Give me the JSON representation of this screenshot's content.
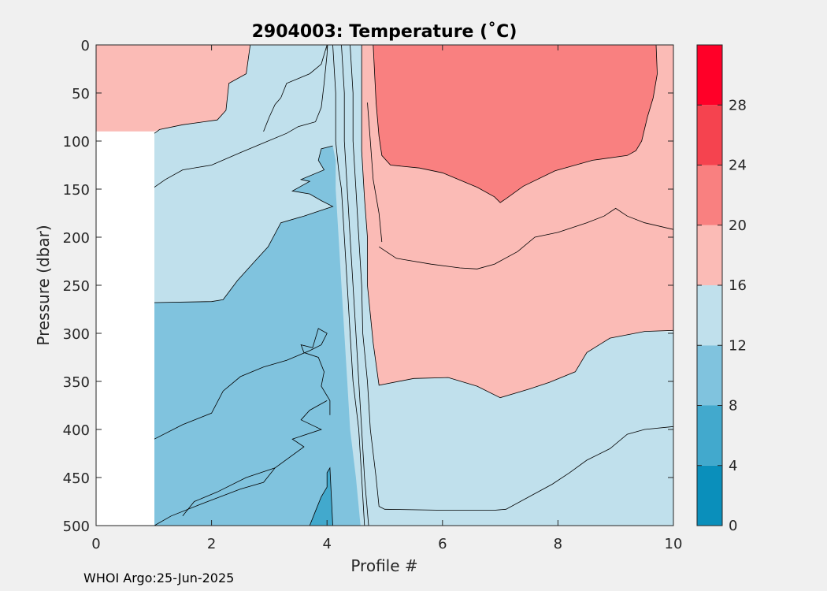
{
  "chart_data": {
    "type": "filled-contour",
    "title": "2904003:  Temperature (˚C)",
    "xlabel": "Profile #",
    "ylabel": "Pressure (dbar)",
    "xlim": [
      0,
      10
    ],
    "ylim": [
      0,
      500
    ],
    "y_reversed": true,
    "xticks": [
      0,
      2,
      4,
      6,
      8,
      10
    ],
    "yticks": [
      0,
      50,
      100,
      150,
      200,
      250,
      300,
      350,
      400,
      450,
      500
    ],
    "grid": false,
    "colorbar": {
      "range": [
        0,
        32
      ],
      "ticks": [
        0,
        4,
        8,
        12,
        16,
        20,
        24,
        28
      ],
      "bins": [
        {
          "min": 0,
          "max": 4,
          "color": "#0a8fbb"
        },
        {
          "min": 4,
          "max": 8,
          "color": "#42a9cd"
        },
        {
          "min": 8,
          "max": 12,
          "color": "#80c3de"
        },
        {
          "min": 12,
          "max": 16,
          "color": "#c0e0ec"
        },
        {
          "min": 16,
          "max": 20,
          "color": "#fbbbb6"
        },
        {
          "min": 20,
          "max": 24,
          "color": "#f98080"
        },
        {
          "min": 24,
          "max": 28,
          "color": "#f5434f"
        },
        {
          "min": 28,
          "max": 32,
          "color": "#ff0028"
        }
      ]
    },
    "no_data_region": {
      "x": [
        0,
        1.01
      ],
      "p": [
        92,
        500
      ]
    },
    "regions": [
      {
        "level": "16-20",
        "color": "#fbbbb6",
        "points": [
          [
            0,
            0
          ],
          [
            2.67,
            0
          ],
          [
            2.6,
            30
          ],
          [
            2.3,
            40
          ],
          [
            2.25,
            68
          ],
          [
            2.1,
            78
          ],
          [
            1.5,
            83
          ],
          [
            1.1,
            88
          ],
          [
            1.01,
            90
          ],
          [
            0,
            90
          ]
        ]
      },
      {
        "level": "16-20",
        "color": "#fbbbb6",
        "points": [
          [
            4.6,
            0
          ],
          [
            10,
            0
          ],
          [
            10,
            297
          ],
          [
            9.5,
            298
          ],
          [
            8.9,
            305
          ],
          [
            8.5,
            320
          ],
          [
            8.3,
            340
          ],
          [
            7.85,
            351
          ],
          [
            7.5,
            358
          ],
          [
            7,
            367
          ],
          [
            6.6,
            355
          ],
          [
            6.1,
            346
          ],
          [
            5.5,
            347
          ],
          [
            4.9,
            354
          ],
          [
            4.8,
            310
          ],
          [
            4.7,
            250
          ],
          [
            4.7,
            200
          ],
          [
            4.65,
            160
          ],
          [
            4.6,
            110
          ],
          [
            4.6,
            60
          ]
        ]
      },
      {
        "level": "20-24",
        "color": "#f98080",
        "points": [
          [
            4.8,
            0
          ],
          [
            9.7,
            0
          ],
          [
            9.72,
            30
          ],
          [
            9.65,
            55
          ],
          [
            9.55,
            75
          ],
          [
            9.45,
            100
          ],
          [
            9.35,
            110
          ],
          [
            9.2,
            115
          ],
          [
            8.6,
            120
          ],
          [
            7.95,
            131
          ],
          [
            7.4,
            147
          ],
          [
            7.1,
            160
          ],
          [
            7.0,
            164
          ],
          [
            6.9,
            158
          ],
          [
            6.6,
            148
          ],
          [
            6.4,
            143
          ],
          [
            6.0,
            133
          ],
          [
            5.6,
            128
          ],
          [
            5.1,
            125
          ],
          [
            4.95,
            115
          ],
          [
            4.9,
            95
          ],
          [
            4.85,
            60
          ]
        ]
      },
      {
        "level": "12-16",
        "color": "#c0e0ec",
        "points": [
          [
            1.01,
            92
          ],
          [
            1.01,
            500
          ],
          [
            10,
            500
          ],
          [
            10,
            298
          ],
          [
            9.5,
            298
          ],
          [
            8.9,
            305
          ],
          [
            8.5,
            320
          ],
          [
            8.3,
            340
          ],
          [
            7.85,
            351
          ],
          [
            7.5,
            358
          ],
          [
            7,
            367
          ],
          [
            6.6,
            355
          ],
          [
            6.1,
            346
          ],
          [
            5.5,
            347
          ],
          [
            4.9,
            354
          ],
          [
            4.8,
            310
          ],
          [
            4.7,
            250
          ],
          [
            4.7,
            200
          ],
          [
            4.65,
            160
          ],
          [
            4.6,
            110
          ],
          [
            4.6,
            60
          ],
          [
            4.6,
            0
          ],
          [
            2.67,
            0
          ],
          [
            2.6,
            30
          ],
          [
            2.3,
            40
          ],
          [
            2.25,
            68
          ],
          [
            2.1,
            78
          ],
          [
            1.5,
            83
          ],
          [
            1.1,
            88
          ],
          [
            1.01,
            92
          ]
        ]
      },
      {
        "level": "8-12",
        "color": "#80c3de",
        "points": [
          [
            1.01,
            268
          ],
          [
            2.0,
            267
          ],
          [
            2.2,
            265
          ],
          [
            2.45,
            245
          ],
          [
            2.75,
            225
          ],
          [
            2.98,
            210
          ],
          [
            3.2,
            185
          ],
          [
            3.6,
            178
          ],
          [
            3.85,
            173
          ],
          [
            4.1,
            168
          ],
          [
            3.9,
            162
          ],
          [
            3.7,
            155
          ],
          [
            3.4,
            152
          ],
          [
            3.7,
            142
          ],
          [
            3.55,
            140
          ],
          [
            3.95,
            130
          ],
          [
            3.85,
            120
          ],
          [
            3.9,
            108
          ],
          [
            4.1,
            105
          ],
          [
            4.15,
            120
          ],
          [
            4.15,
            150
          ],
          [
            4.2,
            200
          ],
          [
            4.25,
            250
          ],
          [
            4.3,
            300
          ],
          [
            4.35,
            350
          ],
          [
            4.4,
            400
          ],
          [
            4.5,
            450
          ],
          [
            4.58,
            500
          ],
          [
            1.01,
            500
          ]
        ]
      },
      {
        "level": "4-8",
        "color": "#42a9cd",
        "points": [
          [
            3.7,
            500
          ],
          [
            3.8,
            485
          ],
          [
            3.9,
            470
          ],
          [
            4.0,
            460
          ],
          [
            4.0,
            445
          ],
          [
            4.05,
            440
          ],
          [
            4.1,
            500
          ]
        ]
      }
    ],
    "contour_lines": [
      [
        [
          1.01,
          148
        ],
        [
          1.2,
          140
        ],
        [
          1.5,
          130
        ],
        [
          2.0,
          125
        ],
        [
          2.5,
          112
        ],
        [
          2.9,
          102
        ],
        [
          3.3,
          92
        ],
        [
          3.5,
          85
        ],
        [
          3.8,
          80
        ],
        [
          3.9,
          65
        ],
        [
          3.95,
          40
        ],
        [
          4.0,
          10
        ],
        [
          4.01,
          0
        ]
      ],
      [
        [
          4.1,
          0
        ],
        [
          4.15,
          50
        ],
        [
          4.15,
          100
        ],
        [
          4.2,
          130
        ],
        [
          4.25,
          150
        ],
        [
          4.3,
          200
        ],
        [
          4.35,
          250
        ],
        [
          4.4,
          300
        ],
        [
          4.45,
          350
        ],
        [
          4.55,
          400
        ],
        [
          4.6,
          450
        ],
        [
          4.65,
          500
        ]
      ],
      [
        [
          4.0,
          0
        ],
        [
          3.9,
          20
        ],
        [
          3.7,
          30
        ],
        [
          3.3,
          40
        ],
        [
          3.2,
          55
        ],
        [
          3.1,
          62
        ],
        [
          3.0,
          75
        ],
        [
          2.9,
          90
        ]
      ],
      [
        [
          4.4,
          0
        ],
        [
          4.45,
          50
        ],
        [
          4.45,
          100
        ],
        [
          4.5,
          150
        ],
        [
          4.55,
          200
        ],
        [
          4.6,
          250
        ],
        [
          4.62,
          300
        ],
        [
          4.7,
          350
        ],
        [
          4.75,
          400
        ],
        [
          4.85,
          450
        ],
        [
          4.9,
          480
        ],
        [
          5.0,
          483
        ],
        [
          6.0,
          484
        ],
        [
          6.9,
          484
        ],
        [
          7.1,
          483
        ],
        [
          7.5,
          470
        ],
        [
          7.9,
          457
        ],
        [
          8.2,
          445
        ],
        [
          8.5,
          432
        ],
        [
          8.9,
          420
        ],
        [
          9.2,
          405
        ],
        [
          9.5,
          400
        ],
        [
          10,
          397
        ]
      ],
      [
        [
          1.01,
          410
        ],
        [
          1.5,
          395
        ],
        [
          2.0,
          383
        ],
        [
          2.2,
          360
        ],
        [
          2.5,
          345
        ],
        [
          2.9,
          335
        ],
        [
          3.3,
          328
        ],
        [
          3.7,
          318
        ],
        [
          3.9,
          312
        ],
        [
          4.0,
          300
        ],
        [
          3.85,
          295
        ],
        [
          3.75,
          315
        ],
        [
          3.55,
          312
        ],
        [
          3.6,
          320
        ],
        [
          3.85,
          325
        ],
        [
          3.95,
          340
        ],
        [
          3.9,
          355
        ],
        [
          4.05,
          370
        ],
        [
          4.05,
          385
        ]
      ],
      [
        [
          1.01,
          500
        ],
        [
          1.3,
          490
        ],
        [
          1.8,
          478
        ],
        [
          2.5,
          462
        ],
        [
          2.9,
          455
        ],
        [
          3.1,
          440
        ],
        [
          3.6,
          418
        ],
        [
          3.4,
          410
        ],
        [
          3.9,
          400
        ],
        [
          3.55,
          390
        ],
        [
          3.7,
          380
        ],
        [
          4.0,
          370
        ]
      ],
      [
        [
          1.5,
          490
        ],
        [
          1.7,
          475
        ],
        [
          2.1,
          465
        ],
        [
          2.6,
          450
        ],
        [
          3.1,
          440
        ]
      ],
      [
        [
          3.7,
          500
        ],
        [
          3.8,
          485
        ],
        [
          3.9,
          470
        ],
        [
          4.0,
          460
        ],
        [
          4.0,
          445
        ],
        [
          4.05,
          440
        ],
        [
          4.1,
          500
        ]
      ],
      [
        [
          4.25,
          0
        ],
        [
          4.3,
          50
        ],
        [
          4.3,
          100
        ],
        [
          4.35,
          150
        ],
        [
          4.4,
          200
        ],
        [
          4.45,
          250
        ],
        [
          4.5,
          300
        ],
        [
          4.55,
          350
        ],
        [
          4.6,
          400
        ],
        [
          4.65,
          450
        ],
        [
          4.72,
          500
        ]
      ]
    ],
    "boundary_lines": [
      [
        [
          1.01,
          92
        ],
        [
          1.1,
          88
        ],
        [
          1.5,
          83
        ],
        [
          2.1,
          78
        ],
        [
          2.25,
          68
        ],
        [
          2.3,
          40
        ],
        [
          2.6,
          30
        ],
        [
          2.67,
          0
        ]
      ],
      [
        [
          4.6,
          0
        ],
        [
          4.6,
          60
        ],
        [
          4.6,
          110
        ],
        [
          4.65,
          160
        ],
        [
          4.7,
          200
        ],
        [
          4.7,
          250
        ],
        [
          4.8,
          310
        ],
        [
          4.9,
          354
        ],
        [
          5.5,
          347
        ],
        [
          6.1,
          346
        ],
        [
          6.6,
          355
        ],
        [
          7,
          367
        ],
        [
          7.5,
          358
        ],
        [
          7.85,
          351
        ],
        [
          8.3,
          340
        ],
        [
          8.5,
          320
        ],
        [
          8.9,
          305
        ],
        [
          9.5,
          298
        ],
        [
          10,
          297
        ]
      ],
      [
        [
          4.8,
          0
        ],
        [
          4.85,
          60
        ],
        [
          4.9,
          95
        ],
        [
          4.95,
          115
        ],
        [
          5.1,
          125
        ],
        [
          5.6,
          128
        ],
        [
          6.0,
          133
        ],
        [
          6.4,
          143
        ],
        [
          6.6,
          148
        ],
        [
          6.9,
          158
        ],
        [
          7.0,
          164
        ],
        [
          7.1,
          160
        ],
        [
          7.4,
          147
        ],
        [
          7.95,
          131
        ],
        [
          8.6,
          120
        ],
        [
          9.2,
          115
        ],
        [
          9.35,
          110
        ],
        [
          9.45,
          100
        ],
        [
          9.55,
          75
        ],
        [
          9.65,
          55
        ],
        [
          9.72,
          30
        ],
        [
          9.7,
          0
        ]
      ],
      [
        [
          4.9,
          210
        ],
        [
          5.2,
          222
        ],
        [
          5.8,
          228
        ],
        [
          6.3,
          232
        ],
        [
          6.6,
          233
        ],
        [
          6.9,
          228
        ],
        [
          7.3,
          215
        ],
        [
          7.6,
          200
        ],
        [
          8.0,
          195
        ],
        [
          8.5,
          185
        ],
        [
          8.8,
          178
        ],
        [
          9.0,
          170
        ],
        [
          9.2,
          178
        ],
        [
          9.5,
          185
        ],
        [
          10,
          192
        ]
      ],
      [
        [
          4.7,
          60
        ],
        [
          4.75,
          100
        ],
        [
          4.8,
          140
        ],
        [
          4.9,
          175
        ],
        [
          4.95,
          205
        ]
      ],
      [
        [
          1.01,
          268
        ],
        [
          2.0,
          267
        ],
        [
          2.2,
          265
        ],
        [
          2.45,
          245
        ],
        [
          2.75,
          225
        ],
        [
          2.98,
          210
        ],
        [
          3.2,
          185
        ],
        [
          3.6,
          178
        ],
        [
          3.85,
          173
        ],
        [
          4.1,
          168
        ],
        [
          3.9,
          162
        ],
        [
          3.7,
          155
        ],
        [
          3.4,
          152
        ],
        [
          3.7,
          142
        ],
        [
          3.55,
          140
        ],
        [
          3.95,
          130
        ],
        [
          3.85,
          120
        ],
        [
          3.9,
          108
        ],
        [
          4.1,
          105
        ]
      ]
    ]
  },
  "footer": "WHOI Argo:25-Jun-2025"
}
